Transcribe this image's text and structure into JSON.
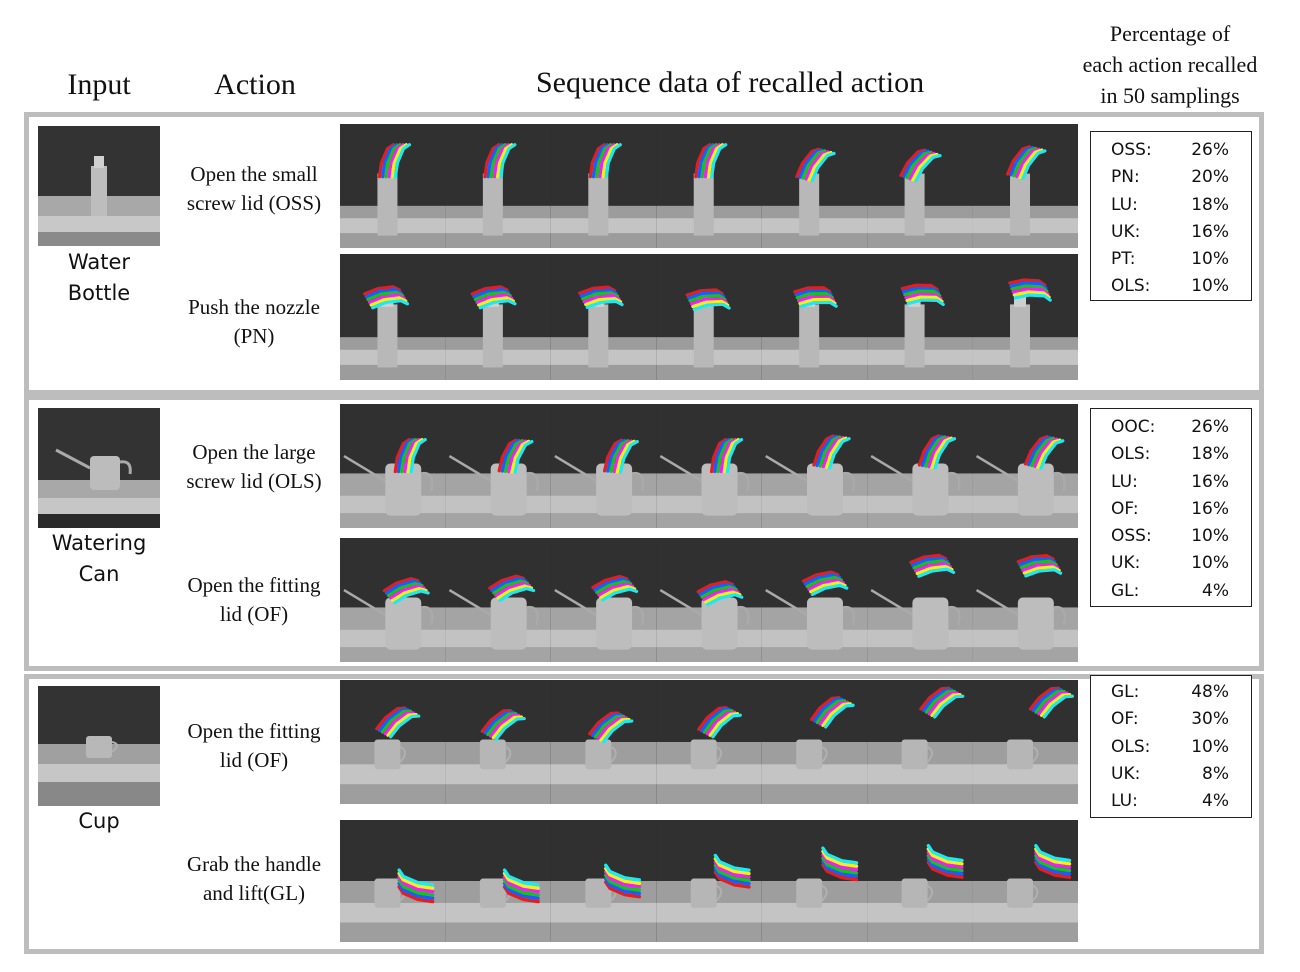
{
  "headers": {
    "input": "Input",
    "action": "Action",
    "sequence": "Sequence data of recalled action",
    "percentage_line1": "Percentage of",
    "percentage_line2": "each action recalled",
    "percentage_line3": "in 50 samplings"
  },
  "objects": [
    {
      "name_line1": "Water",
      "name_line2": "Bottle",
      "actions": [
        {
          "line1": "Open the small",
          "line2": "screw lid (OSS)"
        },
        {
          "line1": "Push the nozzle",
          "line2": "(PN)"
        }
      ],
      "percentages": [
        {
          "action": "OSS:",
          "pct": "26%"
        },
        {
          "action": "PN:",
          "pct": "20%"
        },
        {
          "action": "LU:",
          "pct": "18%"
        },
        {
          "action": "UK:",
          "pct": "16%"
        },
        {
          "action": "PT:",
          "pct": "10%"
        },
        {
          "action": "OLS:",
          "pct": "10%"
        }
      ]
    },
    {
      "name_line1": "Watering",
      "name_line2": "Can",
      "actions": [
        {
          "line1": "Open the large",
          "line2": "screw lid (OLS)"
        },
        {
          "line1": "Open the fitting",
          "line2": "lid (OF)"
        }
      ],
      "percentages": [
        {
          "action": "OOC:",
          "pct": "26%"
        },
        {
          "action": "OLS:",
          "pct": "18%"
        },
        {
          "action": "LU:",
          "pct": "16%"
        },
        {
          "action": "OF:",
          "pct": "16%"
        },
        {
          "action": "OSS:",
          "pct": "10%"
        },
        {
          "action": "UK:",
          "pct": "10%"
        },
        {
          "action": "GL:",
          "pct": "4%"
        }
      ]
    },
    {
      "name_line1": "Cup",
      "name_line2": "",
      "actions": [
        {
          "line1": "Open the fitting",
          "line2": "lid (OF)"
        },
        {
          "line1": "Grab the handle",
          "line2": "and lift(GL)"
        }
      ],
      "percentages": [
        {
          "action": "GL:",
          "pct": "48%"
        },
        {
          "action": "OF:",
          "pct": "30%"
        },
        {
          "action": "OLS:",
          "pct": "10%"
        },
        {
          "action": "UK:",
          "pct": "8%"
        },
        {
          "action": "LU:",
          "pct": "4%"
        }
      ]
    }
  ],
  "colors": {
    "panel_border": "#bdbdbd",
    "scene_bg": "#303030",
    "finger_red": "#e02020",
    "finger_blue": "#1e5bff",
    "finger_green": "#16c21e",
    "finger_magenta": "#f020f0",
    "finger_yellow": "#f0f020",
    "finger_cyan": "#20e8f0"
  }
}
